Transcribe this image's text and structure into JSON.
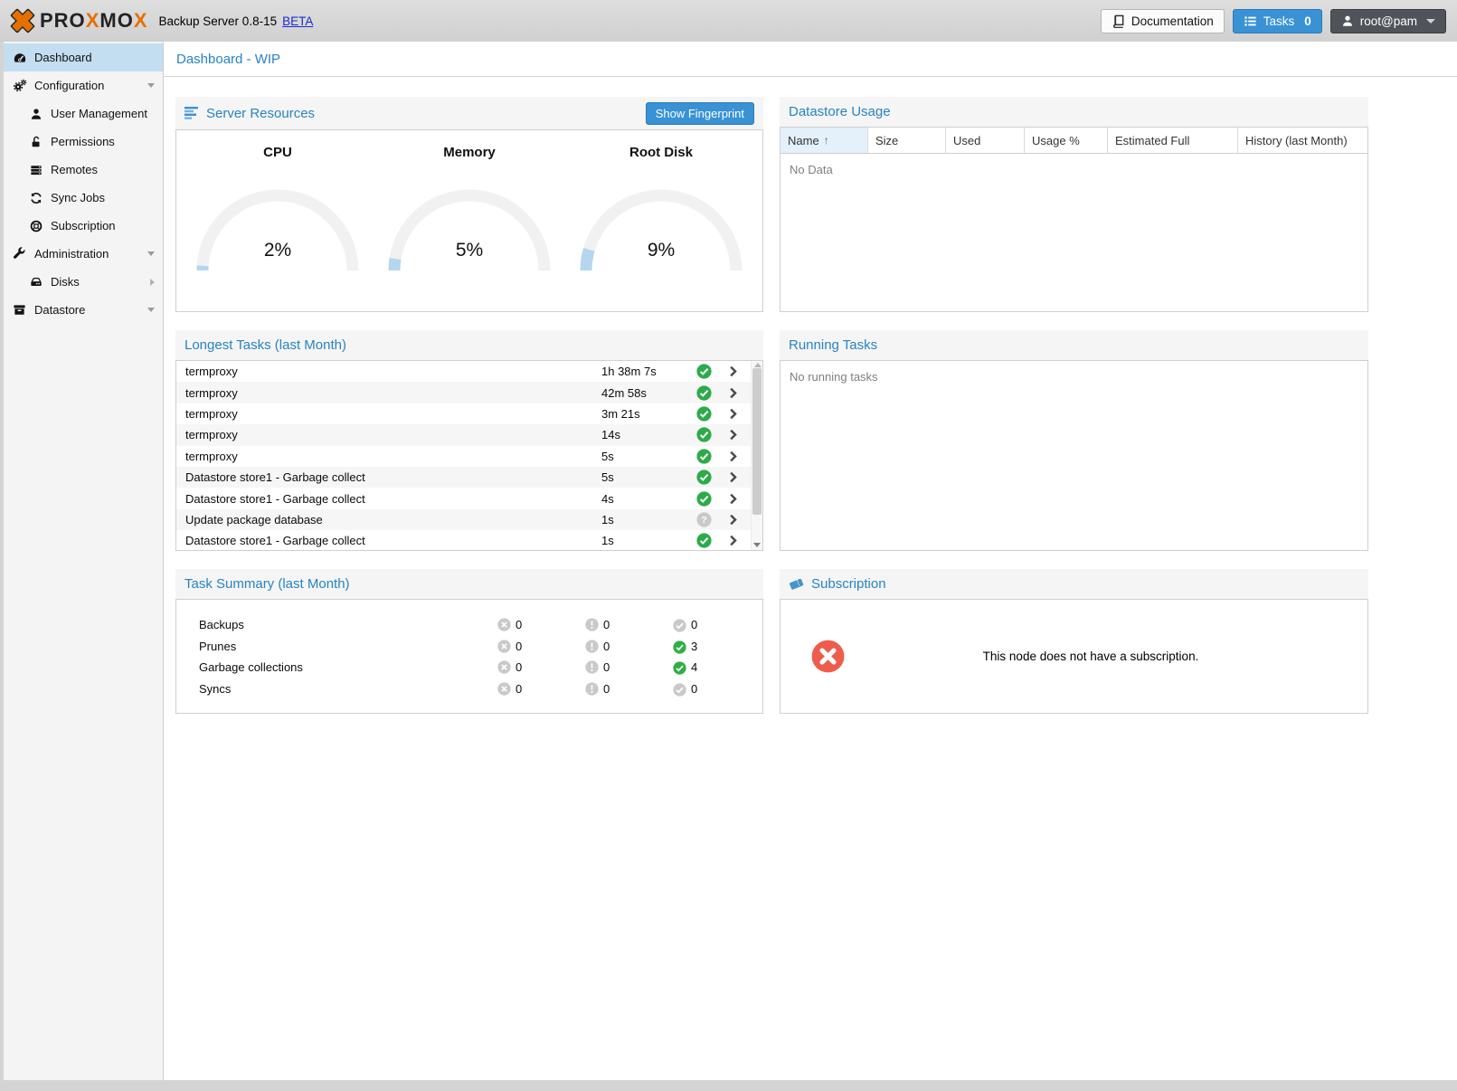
{
  "topbar": {
    "brand_parts": [
      "PRO",
      "X",
      "MO",
      "X"
    ],
    "subtitle": "Backup Server 0.8-15",
    "beta_link": "BETA",
    "documentation_label": "Documentation",
    "tasks_label": "Tasks",
    "tasks_count": "0",
    "user_label": "root@pam"
  },
  "sidebar": {
    "items": [
      {
        "label": "Dashboard",
        "icon": "tachometer-icon",
        "selected": true
      },
      {
        "label": "Configuration",
        "icon": "gears-icon",
        "arrow": "down"
      },
      {
        "label": "User Management",
        "icon": "user-icon",
        "indent": true
      },
      {
        "label": "Permissions",
        "icon": "unlock-icon",
        "indent": true
      },
      {
        "label": "Remotes",
        "icon": "server-icon",
        "indent": true
      },
      {
        "label": "Sync Jobs",
        "icon": "sync-icon",
        "indent": true
      },
      {
        "label": "Subscription",
        "icon": "life-ring-icon",
        "indent": true
      },
      {
        "label": "Administration",
        "icon": "wrench-icon",
        "arrow": "down"
      },
      {
        "label": "Disks",
        "icon": "hdd-icon",
        "indent": true,
        "arrow": "right"
      },
      {
        "label": "Datastore",
        "icon": "archive-icon",
        "arrow": "down"
      }
    ]
  },
  "page_title": "Dashboard - WIP",
  "panels": {
    "server_resources": {
      "title": "Server Resources",
      "button_label": "Show Fingerprint",
      "gauges": [
        {
          "label": "CPU",
          "value": 2,
          "display": "2%"
        },
        {
          "label": "Memory",
          "value": 5,
          "display": "5%"
        },
        {
          "label": "Root Disk",
          "value": 9,
          "display": "9%"
        }
      ]
    },
    "datastore_usage": {
      "title": "Datastore Usage",
      "columns": [
        "Name",
        "Size",
        "Used",
        "Usage %",
        "Estimated Full",
        "History (last Month)"
      ],
      "sorted_column": "Name",
      "sort_glyph": "↑",
      "empty_text": "No Data"
    },
    "longest_tasks": {
      "title": "Longest Tasks (last Month)",
      "rows": [
        {
          "name": "termproxy",
          "duration": "1h 38m 7s",
          "status": "ok"
        },
        {
          "name": "termproxy",
          "duration": "42m 58s",
          "status": "ok"
        },
        {
          "name": "termproxy",
          "duration": "3m 21s",
          "status": "ok"
        },
        {
          "name": "termproxy",
          "duration": "14s",
          "status": "ok"
        },
        {
          "name": "termproxy",
          "duration": "5s",
          "status": "ok"
        },
        {
          "name": "Datastore store1 - Garbage collect",
          "duration": "5s",
          "status": "ok"
        },
        {
          "name": "Datastore store1 - Garbage collect",
          "duration": "4s",
          "status": "ok"
        },
        {
          "name": "Update package database",
          "duration": "1s",
          "status": "unknown"
        },
        {
          "name": "Datastore store1 - Garbage collect",
          "duration": "1s",
          "status": "ok"
        }
      ]
    },
    "running_tasks": {
      "title": "Running Tasks",
      "empty_text": "No running tasks"
    },
    "task_summary": {
      "title": "Task Summary (last Month)",
      "rows": [
        {
          "label": "Backups",
          "error": 0,
          "warning": 0,
          "ok": 0
        },
        {
          "label": "Prunes",
          "error": 0,
          "warning": 0,
          "ok": 3
        },
        {
          "label": "Garbage collections",
          "error": 0,
          "warning": 0,
          "ok": 4
        },
        {
          "label": "Syncs",
          "error": 0,
          "warning": 0,
          "ok": 0
        }
      ]
    },
    "subscription": {
      "title": "Subscription",
      "message": "This node does not have a subscription."
    }
  },
  "colors": {
    "accent_blue": "#3892d4",
    "title_blue": "#2783c4",
    "brand_orange": "#e57000",
    "status_green": "#2cab49",
    "status_gray": "#c9c9c9",
    "error_red": "#ee5c4c",
    "selected_nav": "#c3ddf1",
    "gauge_track": "#f1f1f1",
    "gauge_value": "#b5d6ef"
  }
}
